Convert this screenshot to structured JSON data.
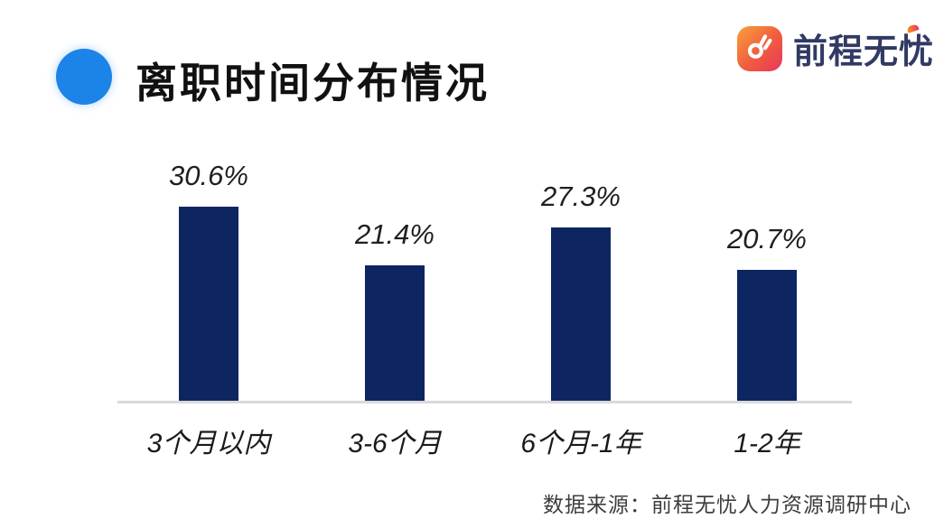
{
  "header": {
    "title": "离职时间分布情况",
    "bullet_color": "#1C83E8",
    "title_color": "#111111"
  },
  "logo": {
    "brand": "前程无忧",
    "icon": "hand-gesture-icon",
    "badge_gradient": [
      "#F9A13A",
      "#E8375C"
    ],
    "text_color": "#323A64"
  },
  "chart_data": {
    "type": "bar",
    "title": "离职时间分布情况",
    "categories": [
      "3个月以内",
      "3-6个月",
      "6个月-1年",
      "1-2年"
    ],
    "values": [
      30.6,
      21.4,
      27.3,
      20.7
    ],
    "value_labels": [
      "30.6%",
      "21.4%",
      "27.3%",
      "20.7%"
    ],
    "xlabel": "",
    "ylabel": "",
    "ylim": [
      0,
      35
    ],
    "grid": false,
    "legend": false,
    "bar_color": "#0D2661",
    "axis_color": "#D9D9D9"
  },
  "footer": {
    "source": "数据来源：前程无忧人力资源调研中心"
  }
}
